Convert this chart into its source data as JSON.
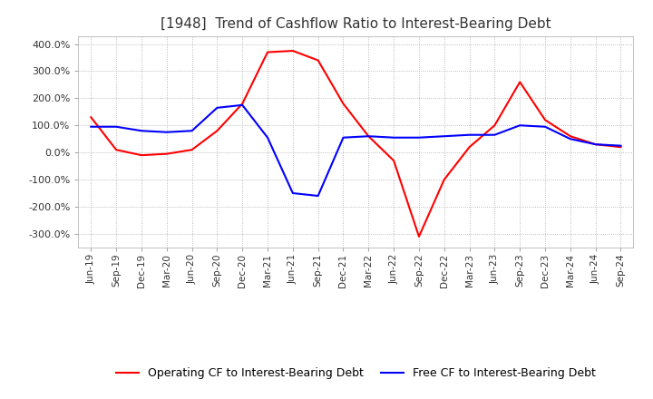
{
  "title": "[1948]  Trend of Cashflow Ratio to Interest-Bearing Debt",
  "title_fontsize": 11,
  "x_labels": [
    "Jun-19",
    "Sep-19",
    "Dec-19",
    "Mar-20",
    "Jun-20",
    "Sep-20",
    "Dec-20",
    "Mar-21",
    "Jun-21",
    "Sep-21",
    "Dec-21",
    "Mar-22",
    "Jun-22",
    "Sep-22",
    "Dec-22",
    "Mar-23",
    "Jun-23",
    "Sep-23",
    "Dec-23",
    "Mar-24",
    "Jun-24",
    "Sep-24"
  ],
  "operating_cf": [
    130.0,
    10.0,
    -10.0,
    -5.0,
    10.0,
    80.0,
    180.0,
    370.0,
    375.0,
    340.0,
    180.0,
    60.0,
    -30.0,
    -310.0,
    -100.0,
    20.0,
    100.0,
    260.0,
    120.0,
    60.0,
    30.0,
    20.0
  ],
  "free_cf": [
    95.0,
    95.0,
    80.0,
    75.0,
    80.0,
    165.0,
    175.0,
    55.0,
    -150.0,
    -160.0,
    55.0,
    60.0,
    55.0,
    55.0,
    60.0,
    65.0,
    65.0,
    100.0,
    95.0,
    50.0,
    30.0,
    25.0
  ],
  "operating_color": "#FF0000",
  "free_color": "#0000FF",
  "ylim": [
    -350,
    430
  ],
  "yticks": [
    -300,
    -200,
    -100,
    0,
    100,
    200,
    300,
    400
  ],
  "ytick_labels": [
    "-300.0%",
    "-200.0%",
    "-100.0%",
    "0.0%",
    "100.0%",
    "200.0%",
    "300.0%",
    "400.0%"
  ],
  "grid_color": "#AAAAAA",
  "background_color": "#FFFFFF",
  "legend_operating": "Operating CF to Interest-Bearing Debt",
  "legend_free": "Free CF to Interest-Bearing Debt"
}
